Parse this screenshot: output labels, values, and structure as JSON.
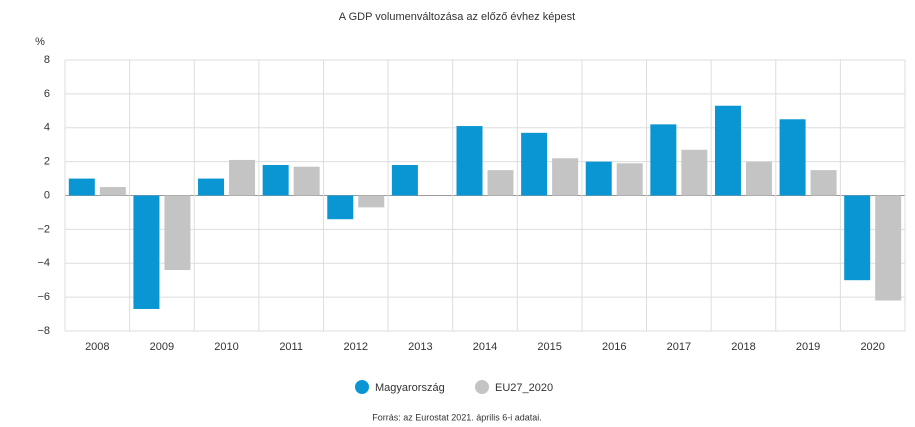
{
  "chart_data": {
    "type": "bar",
    "title": "A GDP volumenváltozása az előző évhez képest",
    "ylabel": "%",
    "source": "Forrás: az Eurostat 2021. április 6-i adatai.",
    "categories": [
      "2008",
      "2009",
      "2010",
      "2011",
      "2012",
      "2013",
      "2014",
      "2015",
      "2016",
      "2017",
      "2018",
      "2019",
      "2020"
    ],
    "series": [
      {
        "name": "Magyarország",
        "color": "#0a96d2",
        "values": [
          1.0,
          -6.7,
          1.0,
          1.8,
          -1.4,
          1.8,
          4.1,
          3.7,
          2.0,
          4.2,
          5.3,
          4.5,
          -5.0
        ]
      },
      {
        "name": "EU27_2020",
        "color": "#c4c4c4",
        "values": [
          0.5,
          -4.4,
          2.1,
          1.7,
          -0.7,
          0.0,
          1.5,
          2.2,
          1.9,
          2.7,
          2.0,
          1.5,
          -6.2
        ]
      }
    ],
    "ylim": [
      -8,
      8
    ],
    "yticks": [
      {
        "value": -8,
        "label": "−8"
      },
      {
        "value": -6,
        "label": "−6"
      },
      {
        "value": -4,
        "label": "−4"
      },
      {
        "value": -2,
        "label": "−2"
      },
      0,
      2,
      4,
      6,
      8
    ],
    "grid": true
  }
}
